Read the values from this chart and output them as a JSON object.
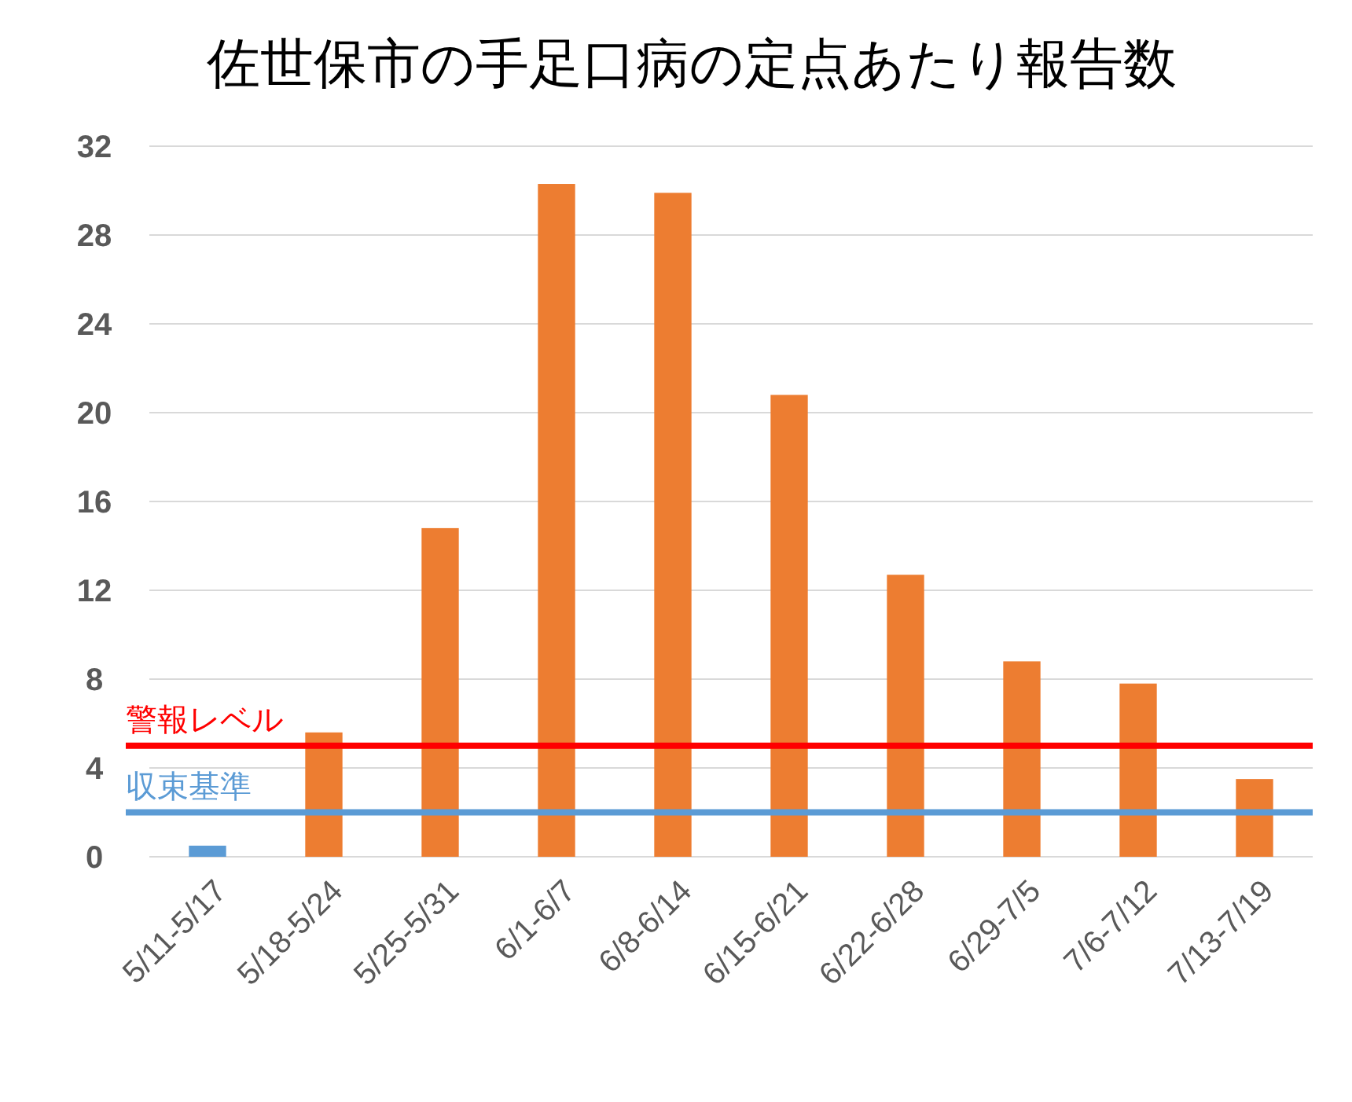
{
  "chart_data": {
    "type": "bar",
    "title": "佐世保市の手足口病の定点あたり報告数",
    "categories": [
      "5/11-5/17",
      "5/18-5/24",
      "5/25-5/31",
      "6/1-6/7",
      "6/8-6/14",
      "6/15-6/21",
      "6/22-6/28",
      "6/29-7/5",
      "7/6-7/12",
      "7/13-7/19"
    ],
    "values": [
      0.5,
      5.6,
      14.8,
      30.3,
      29.9,
      20.8,
      12.7,
      8.8,
      7.8,
      3.5
    ],
    "colors": [
      "#5b9bd5",
      "#ed7d31",
      "#ed7d31",
      "#ed7d31",
      "#ed7d31",
      "#ed7d31",
      "#ed7d31",
      "#ed7d31",
      "#ed7d31",
      "#ed7d31"
    ],
    "ylim": [
      0,
      32
    ],
    "yticks": [
      0,
      4,
      8,
      12,
      16,
      20,
      24,
      28,
      32
    ],
    "grid": "y",
    "ref_lines": [
      {
        "axis": "y",
        "value": 5,
        "label": "警報レベル",
        "color": "#ff0000"
      },
      {
        "axis": "y",
        "value": 2,
        "label": "収束基準",
        "color": "#5b9bd5"
      }
    ]
  }
}
